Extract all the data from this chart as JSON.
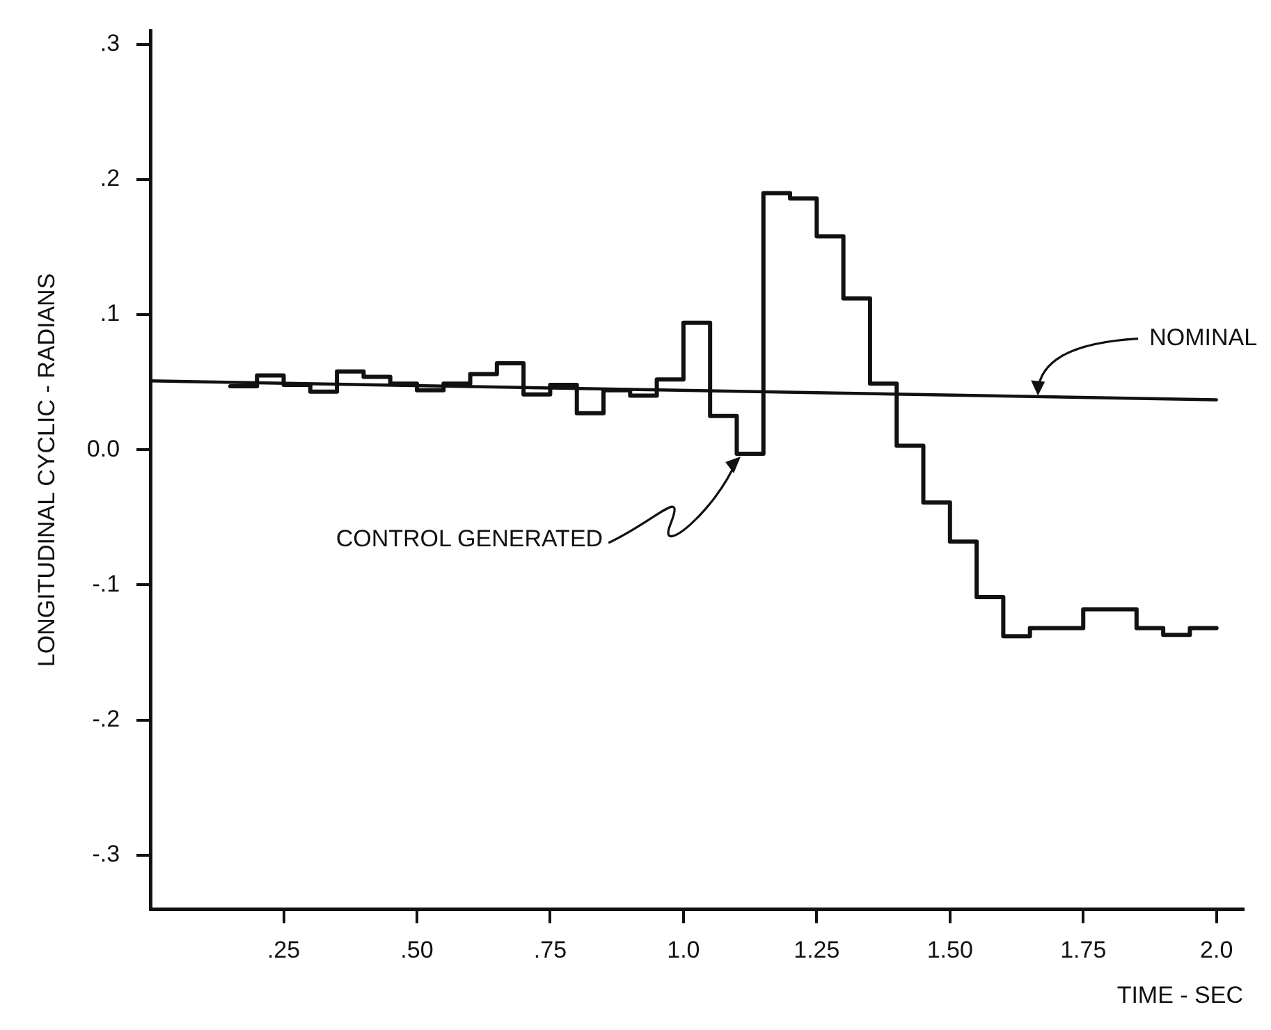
{
  "chart_data": {
    "type": "step",
    "xlabel": "TIME - SEC",
    "ylabel": "LONGITUDINAL CYCLIC - RADIANS",
    "series": [
      {
        "type": "step",
        "color": "#111111",
        "x": [
          0.15,
          0.2,
          0.25,
          0.3,
          0.35,
          0.4,
          0.45,
          0.5,
          0.55,
          0.6,
          0.65,
          0.7,
          0.75,
          0.8,
          0.85,
          0.9,
          0.95,
          1.0,
          1.05,
          1.1,
          1.15,
          1.2,
          1.25,
          1.3,
          1.35,
          1.4,
          1.45,
          1.5,
          1.55,
          1.6,
          1.65,
          1.7,
          1.75,
          1.8,
          1.85,
          1.9,
          1.95,
          2.0
        ],
        "values": [
          0.047,
          0.055,
          0.048,
          0.043,
          0.058,
          0.054,
          0.049,
          0.044,
          0.049,
          0.056,
          0.064,
          0.041,
          0.048,
          0.027,
          0.044,
          0.04,
          0.052,
          0.094,
          0.025,
          -0.003,
          0.19,
          0.186,
          0.158,
          0.112,
          0.049,
          0.003,
          -0.039,
          -0.068,
          -0.109,
          -0.138,
          -0.132,
          -0.132,
          -0.118,
          -0.118,
          -0.132,
          -0.137,
          -0.132,
          -0.132
        ]
      },
      {
        "type": "line",
        "color": "#111111",
        "x": [
          0,
          2.0
        ],
        "values": [
          0.051,
          0.037
        ]
      }
    ],
    "annotations": [
      {
        "text": "NOMINAL",
        "x": 1.665,
        "y": 0.039
      },
      {
        "text": "CONTROL GENERATED",
        "x": 1.11,
        "y": -0.003
      }
    ],
    "xlim": [
      0,
      2.05
    ],
    "ylim": [
      -0.34,
      0.31
    ],
    "xticks": [
      {
        "value": 0.25,
        "label": ".25"
      },
      {
        "value": 0.5,
        "label": ".50"
      },
      {
        "value": 0.75,
        "label": ".75"
      },
      {
        "value": 1.0,
        "label": "1.0"
      },
      {
        "value": 1.25,
        "label": "1.25"
      },
      {
        "value": 1.5,
        "label": "1.50"
      },
      {
        "value": 1.75,
        "label": "1.75"
      },
      {
        "value": 2.0,
        "label": "2.0"
      }
    ],
    "yticks": [
      {
        "value": -0.3,
        "label": "-.3"
      },
      {
        "value": -0.2,
        "label": "-.2"
      },
      {
        "value": -0.1,
        "label": "-.1"
      },
      {
        "value": 0,
        "label": "0.0"
      },
      {
        "value": 0.1,
        "label": ".1"
      },
      {
        "value": 0.2,
        "label": ".2"
      },
      {
        "value": 0.3,
        "label": ".3"
      }
    ],
    "grid": false,
    "legend": false,
    "marker": "none",
    "line_style": "solid"
  }
}
